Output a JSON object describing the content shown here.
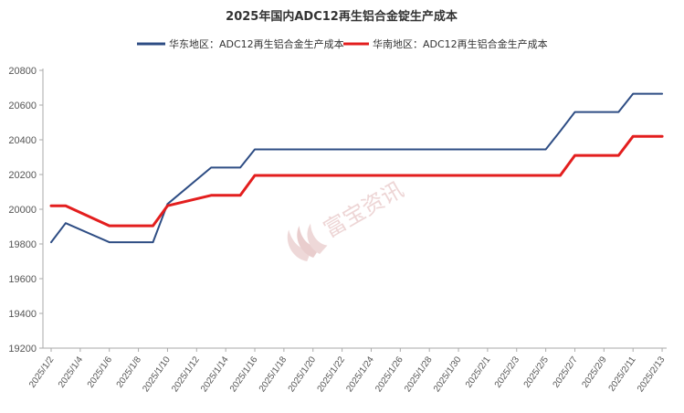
{
  "chart_data": {
    "type": "line",
    "title": "2025年国内ADC12再生铝合金锭生产成本",
    "xlabel": "",
    "ylabel": "",
    "ylim": [
      19200,
      20800
    ],
    "yticks": [
      19200,
      19400,
      19600,
      19800,
      20000,
      20200,
      20400,
      20600,
      20800
    ],
    "grid": false,
    "legend_position": "top",
    "x_tick_labels": [
      "2025/1/2",
      "2025/1/4",
      "2025/1/6",
      "2025/1/8",
      "2025/1/10",
      "2025/1/12",
      "2025/1/14",
      "2025/1/16",
      "2025/1/18",
      "2025/1/20",
      "2025/1/22",
      "2025/1/24",
      "2025/1/26",
      "2025/1/28",
      "2025/1/30",
      "2025/2/1",
      "2025/2/3",
      "2025/2/5",
      "2025/2/7",
      "2025/2/9",
      "2025/2/11",
      "2025/2/13"
    ],
    "x": [
      "2025/1/2",
      "2025/1/3",
      "2025/1/6",
      "2025/1/7",
      "2025/1/8",
      "2025/1/9",
      "2025/1/10",
      "2025/1/13",
      "2025/1/14",
      "2025/1/15",
      "2025/1/16",
      "2025/2/5",
      "2025/2/6",
      "2025/2/7",
      "2025/2/10",
      "2025/2/11",
      "2025/2/12",
      "2025/2/13"
    ],
    "series": [
      {
        "name": "华东地区：ADC12再生铝合金生产成本",
        "color": "#2e4d84",
        "values": [
          19810,
          19920,
          19810,
          19810,
          19810,
          19810,
          20030,
          20240,
          20240,
          20240,
          20345,
          20345,
          20450,
          20560,
          20560,
          20665,
          20665,
          20665
        ]
      },
      {
        "name": "华南地区：ADC12再生铝合金生产成本",
        "color": "#e31e1e",
        "values": [
          20020,
          20020,
          19905,
          19905,
          19905,
          19905,
          20020,
          20080,
          20080,
          20080,
          20195,
          20195,
          20195,
          20310,
          20310,
          20420,
          20420,
          20420
        ]
      }
    ]
  },
  "watermark": {
    "text": "富宝资讯",
    "color": "#e8c8c8"
  }
}
